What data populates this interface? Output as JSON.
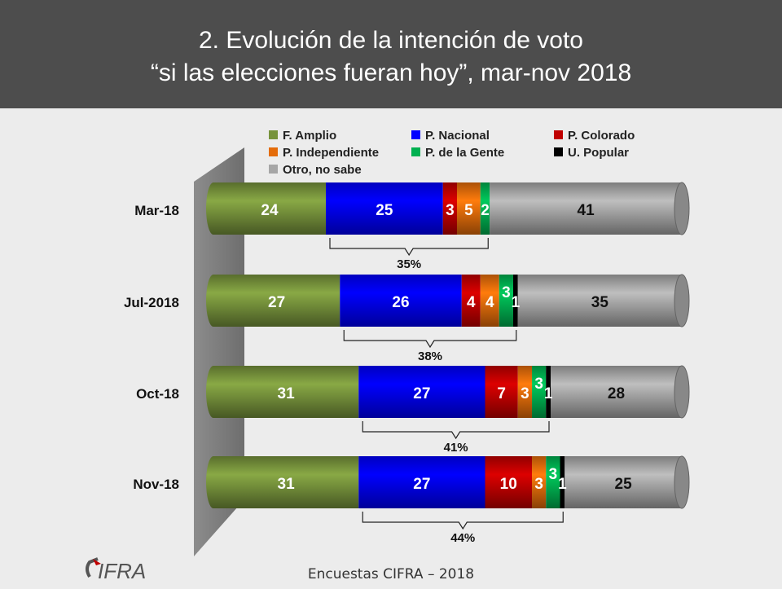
{
  "header": {
    "line1": "2. Evolución de la intención de voto",
    "line2": "“si las elecciones fueran hoy”, mar-nov 2018"
  },
  "footer": {
    "text": "Encuestas CIFRA – 2018",
    "logo_text": "CIFRA"
  },
  "chart_data": {
    "type": "bar",
    "orientation": "horizontal",
    "stacked": true,
    "categories": [
      "Mar-18",
      "Jul-2018",
      "Oct-18",
      "Nov-18"
    ],
    "legend_position": "top",
    "series": [
      {
        "name": "F. Amplio",
        "color": "#77933c",
        "values": [
          24,
          27,
          31,
          31
        ]
      },
      {
        "name": "P. Nacional",
        "color": "#0000ff",
        "values": [
          25,
          26,
          27,
          27
        ]
      },
      {
        "name": "P. Colorado",
        "color": "#c00000",
        "values": [
          3,
          4,
          7,
          10
        ]
      },
      {
        "name": "P. Independiente",
        "color": "#e46c0a",
        "values": [
          5,
          4,
          3,
          3
        ]
      },
      {
        "name": "P. de la Gente",
        "color": "#00b050",
        "values": [
          2,
          3,
          3,
          3
        ]
      },
      {
        "name": "U. Popular",
        "color": "#000000",
        "values": [
          0,
          1,
          1,
          1
        ]
      },
      {
        "name": "Otro, no sabe",
        "color": "#a6a6a6",
        "values": [
          41,
          35,
          28,
          25
        ]
      }
    ],
    "opposition_totals": [
      "35%",
      "38%",
      "41%",
      "44%"
    ]
  }
}
